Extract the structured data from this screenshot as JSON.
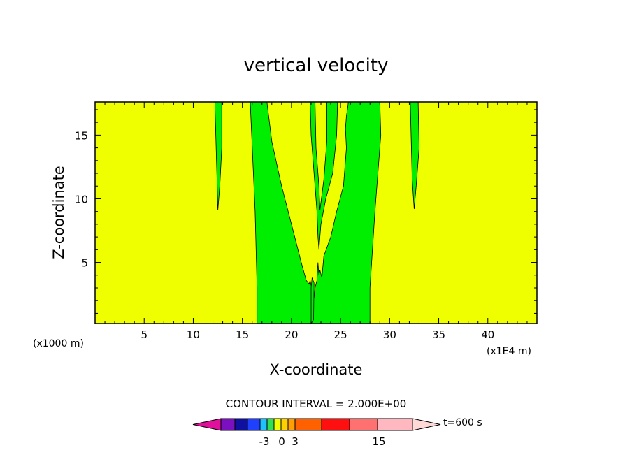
{
  "colors": {
    "background": "#ffffff",
    "field_low": "#f0ff00",
    "field_band": "#00ee00",
    "frame": "#000000"
  },
  "chart_data": {
    "type": "filled-contour",
    "title": "vertical velocity",
    "xlabel": "X-coordinate",
    "ylabel": "Z-coordinate",
    "x_unit_left": "(x1000 m)",
    "x_unit_right": "(x1E4 m)",
    "xlim": [
      0,
      45
    ],
    "ylim": [
      0.2,
      17.6
    ],
    "x_ticks": [
      5,
      10,
      15,
      20,
      25,
      30,
      35,
      40
    ],
    "y_ticks": [
      5,
      10,
      15
    ],
    "contour_interval_label": "CONTOUR INTERVAL = 2.000E+00",
    "time_label": "t=600 s",
    "colorbar": {
      "colors": [
        "#e0109a",
        "#7a10c0",
        "#1010a0",
        "#2040ff",
        "#20c0ff",
        "#30e050",
        "#f0ff00",
        "#ffd000",
        "#ffa000",
        "#ff6000",
        "#ff1010",
        "#ff7070",
        "#ffb8c0",
        "#ffd8d8"
      ],
      "tick_labels": [
        "-3",
        "0",
        "3",
        "15"
      ]
    },
    "regions": [
      {
        "fill": "#00ee00",
        "x": [
          12.2,
          12.4,
          12.5,
          12.7,
          12.9,
          12.9,
          12.0
        ],
        "z": [
          17.6,
          12.0,
          9.1,
          11.0,
          14.0,
          17.6,
          17.6
        ]
      },
      {
        "fill": "#00ee00",
        "x": [
          32.1,
          32.3,
          32.5,
          32.7,
          33.0,
          32.9,
          32.1
        ],
        "z": [
          17.6,
          11.5,
          9.2,
          11.0,
          14.0,
          17.6,
          17.6
        ]
      },
      {
        "fill": "#00ee00",
        "x": [
          15.8,
          16.3,
          16.5,
          16.5,
          22.1,
          22.1,
          28.0,
          28.0,
          28.5,
          29.1,
          29.0,
          15.8
        ],
        "z": [
          17.6,
          9.0,
          3.0,
          0.2,
          0.2,
          0.2,
          0.2,
          3.0,
          9.0,
          15.0,
          17.6,
          17.6
        ]
      },
      {
        "fill": "#f0ff00",
        "x": [
          17.5,
          18.0,
          19.0,
          20.0,
          21.0,
          21.5,
          21.8,
          21.9,
          22.2,
          22.3,
          22.4,
          22.6,
          22.7,
          22.8,
          22.9,
          23.1,
          23.3,
          24.0,
          24.6,
          25.3,
          25.6,
          25.5,
          25.6,
          25.7,
          25.8,
          17.5
        ],
        "z": [
          17.6,
          14.5,
          11.0,
          8.0,
          5.0,
          3.6,
          3.3,
          3.6,
          2.4,
          2.2,
          3.0,
          3.6,
          5.0,
          4.0,
          4.4,
          3.8,
          5.5,
          7.0,
          9.0,
          11.0,
          14.0,
          15.5,
          16.5,
          17.0,
          17.6,
          17.6
        ]
      },
      {
        "fill": "#00ee00",
        "x": [
          21.9,
          22.0,
          22.3,
          22.6,
          22.7,
          22.8,
          23.0,
          23.5,
          24.2,
          24.6,
          24.7,
          21.9
        ],
        "z": [
          17.6,
          15.0,
          12.0,
          9.0,
          7.0,
          6.0,
          8.0,
          10.0,
          12.0,
          15.0,
          17.6,
          17.6
        ]
      },
      {
        "fill": "#f0ff00",
        "x": [
          22.4,
          22.5,
          22.8,
          22.9,
          23.3,
          23.6,
          23.6,
          22.4
        ],
        "z": [
          17.6,
          14.0,
          11.0,
          9.1,
          11.5,
          14.5,
          17.6,
          17.6
        ]
      },
      {
        "fill": "#00ee00",
        "x": [
          22.0,
          22.25,
          22.3,
          22.1,
          22.0
        ],
        "z": [
          0.2,
          0.5,
          3.4,
          3.8,
          3.0
        ]
      }
    ]
  }
}
